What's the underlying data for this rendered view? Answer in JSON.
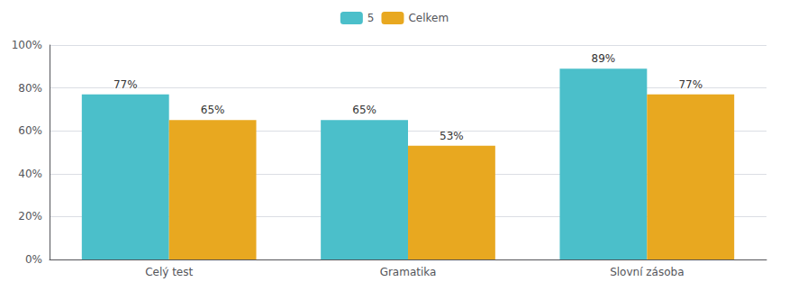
{
  "chart_data": {
    "type": "bar",
    "categories": [
      "Celý test",
      "Gramatika",
      "Slovní zásoba"
    ],
    "series": [
      {
        "name": "5",
        "color": "#4BBFCA",
        "values": [
          0.77,
          0.65,
          0.89
        ],
        "value_labels": [
          "77%",
          "65%",
          "89%"
        ]
      },
      {
        "name": "Celkem",
        "color": "#E8A820",
        "values": [
          0.65,
          0.53,
          0.77
        ],
        "value_labels": [
          "65%",
          "53%",
          "77%"
        ]
      }
    ],
    "ylim": [
      0,
      1.0
    ],
    "yticks": [
      {
        "value": 0.0,
        "label": "0%"
      },
      {
        "value": 0.2,
        "label": "20%"
      },
      {
        "value": 0.4,
        "label": "40%"
      },
      {
        "value": 0.6,
        "label": "60%"
      },
      {
        "value": 0.8,
        "label": "80%"
      },
      {
        "value": 1.0,
        "label": "100%"
      }
    ],
    "grid": true,
    "legend": "top",
    "data_labels": true
  }
}
